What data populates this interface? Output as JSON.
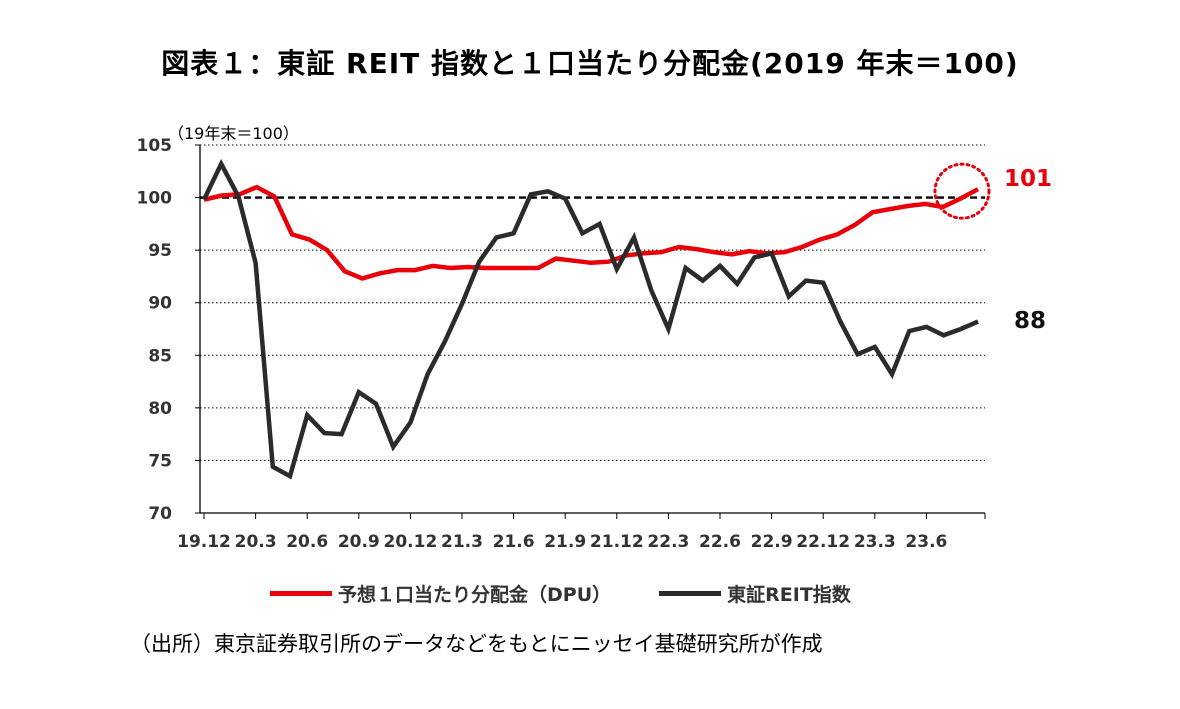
{
  "title": "図表１：東証 REIT 指数と１口当たり分配金(2019 年末＝100)",
  "source_note": "（出所）東京証券取引所のデータなどをもとにニッセイ基礎研究所が作成",
  "colors": {
    "dpu": "#e8000b",
    "reit": "#2b2b2b",
    "grid": "#000000"
  },
  "chart_data": {
    "type": "line",
    "unit_label": "（19年末＝100）",
    "ylim": [
      70,
      105
    ],
    "yticks": [
      70,
      75,
      80,
      85,
      90,
      95,
      100,
      105
    ],
    "x_tick_labels": [
      "19.12",
      "20.3",
      "20.6",
      "20.9",
      "20.12",
      "21.3",
      "21.6",
      "21.9",
      "21.12",
      "22.3",
      "22.6",
      "22.9",
      "22.12",
      "23.3",
      "23.6"
    ],
    "reference_line": 100,
    "grid": "horizontal dotted",
    "legend_position": "bottom",
    "end_labels": {
      "dpu": "101",
      "reit": "88"
    },
    "series": [
      {
        "name": "予想１口当たり分配金（DPU）",
        "key": "dpu",
        "values": [
          99.8,
          100.2,
          100.3,
          101.0,
          100.1,
          96.5,
          96.0,
          95.0,
          93.0,
          92.3,
          92.8,
          93.1,
          93.1,
          93.5,
          93.3,
          93.4,
          93.3,
          93.3,
          93.3,
          93.3,
          94.2,
          94.0,
          93.8,
          93.9,
          94.5,
          94.7,
          94.8,
          95.3,
          95.1,
          94.8,
          94.6,
          94.9,
          94.7,
          94.8,
          95.3,
          96.0,
          96.5,
          97.4,
          98.6,
          98.9,
          99.2,
          99.4,
          99.1,
          99.9,
          100.8
        ]
      },
      {
        "name": "東証REIT指数",
        "key": "reit",
        "values": [
          99.8,
          103.2,
          100.1,
          93.8,
          74.4,
          73.5,
          79.3,
          77.6,
          77.5,
          81.5,
          80.4,
          76.3,
          78.6,
          83.2,
          86.3,
          89.9,
          93.9,
          96.2,
          96.6,
          100.3,
          100.6,
          99.9,
          96.6,
          97.5,
          93.2,
          96.2,
          91.2,
          87.5,
          93.3,
          92.1,
          93.5,
          91.8,
          94.3,
          94.7,
          90.6,
          92.1,
          91.9,
          88.2,
          85.1,
          85.8,
          83.2,
          87.3,
          87.7,
          86.9,
          87.5,
          88.2
        ]
      }
    ]
  }
}
